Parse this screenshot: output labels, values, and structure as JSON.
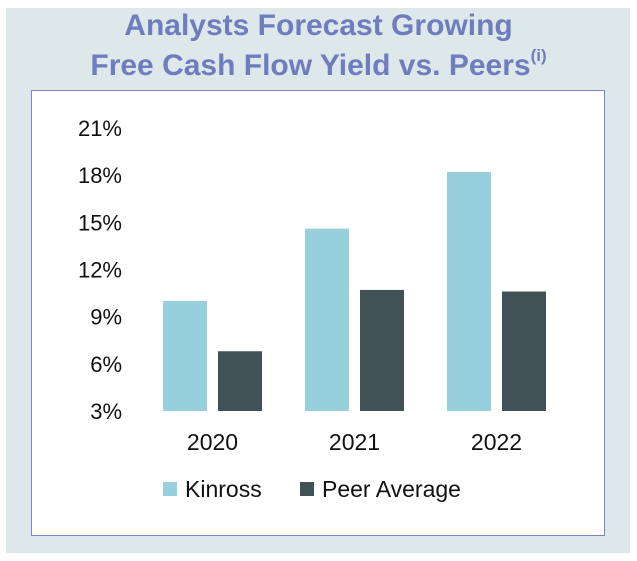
{
  "chart_data": {
    "type": "bar",
    "title_line1": "Analysts Forecast Growing",
    "title_line2": "Free Cash Flow Yield vs. Peers",
    "title_footnote": "(i)",
    "categories": [
      "2020",
      "2021",
      "2022"
    ],
    "series": [
      {
        "name": "Kinross",
        "color": "#97d0dc",
        "values": [
          10.0,
          14.6,
          18.2
        ]
      },
      {
        "name": "Peer Average",
        "color": "#415256",
        "values": [
          6.8,
          10.7,
          10.6
        ]
      }
    ],
    "yticks": [
      "3%",
      "6%",
      "9%",
      "12%",
      "15%",
      "18%",
      "21%"
    ],
    "ytick_values": [
      3,
      6,
      9,
      12,
      15,
      18,
      21
    ],
    "ylim": [
      3,
      21
    ],
    "grid": false,
    "legend_position": "bottom"
  }
}
